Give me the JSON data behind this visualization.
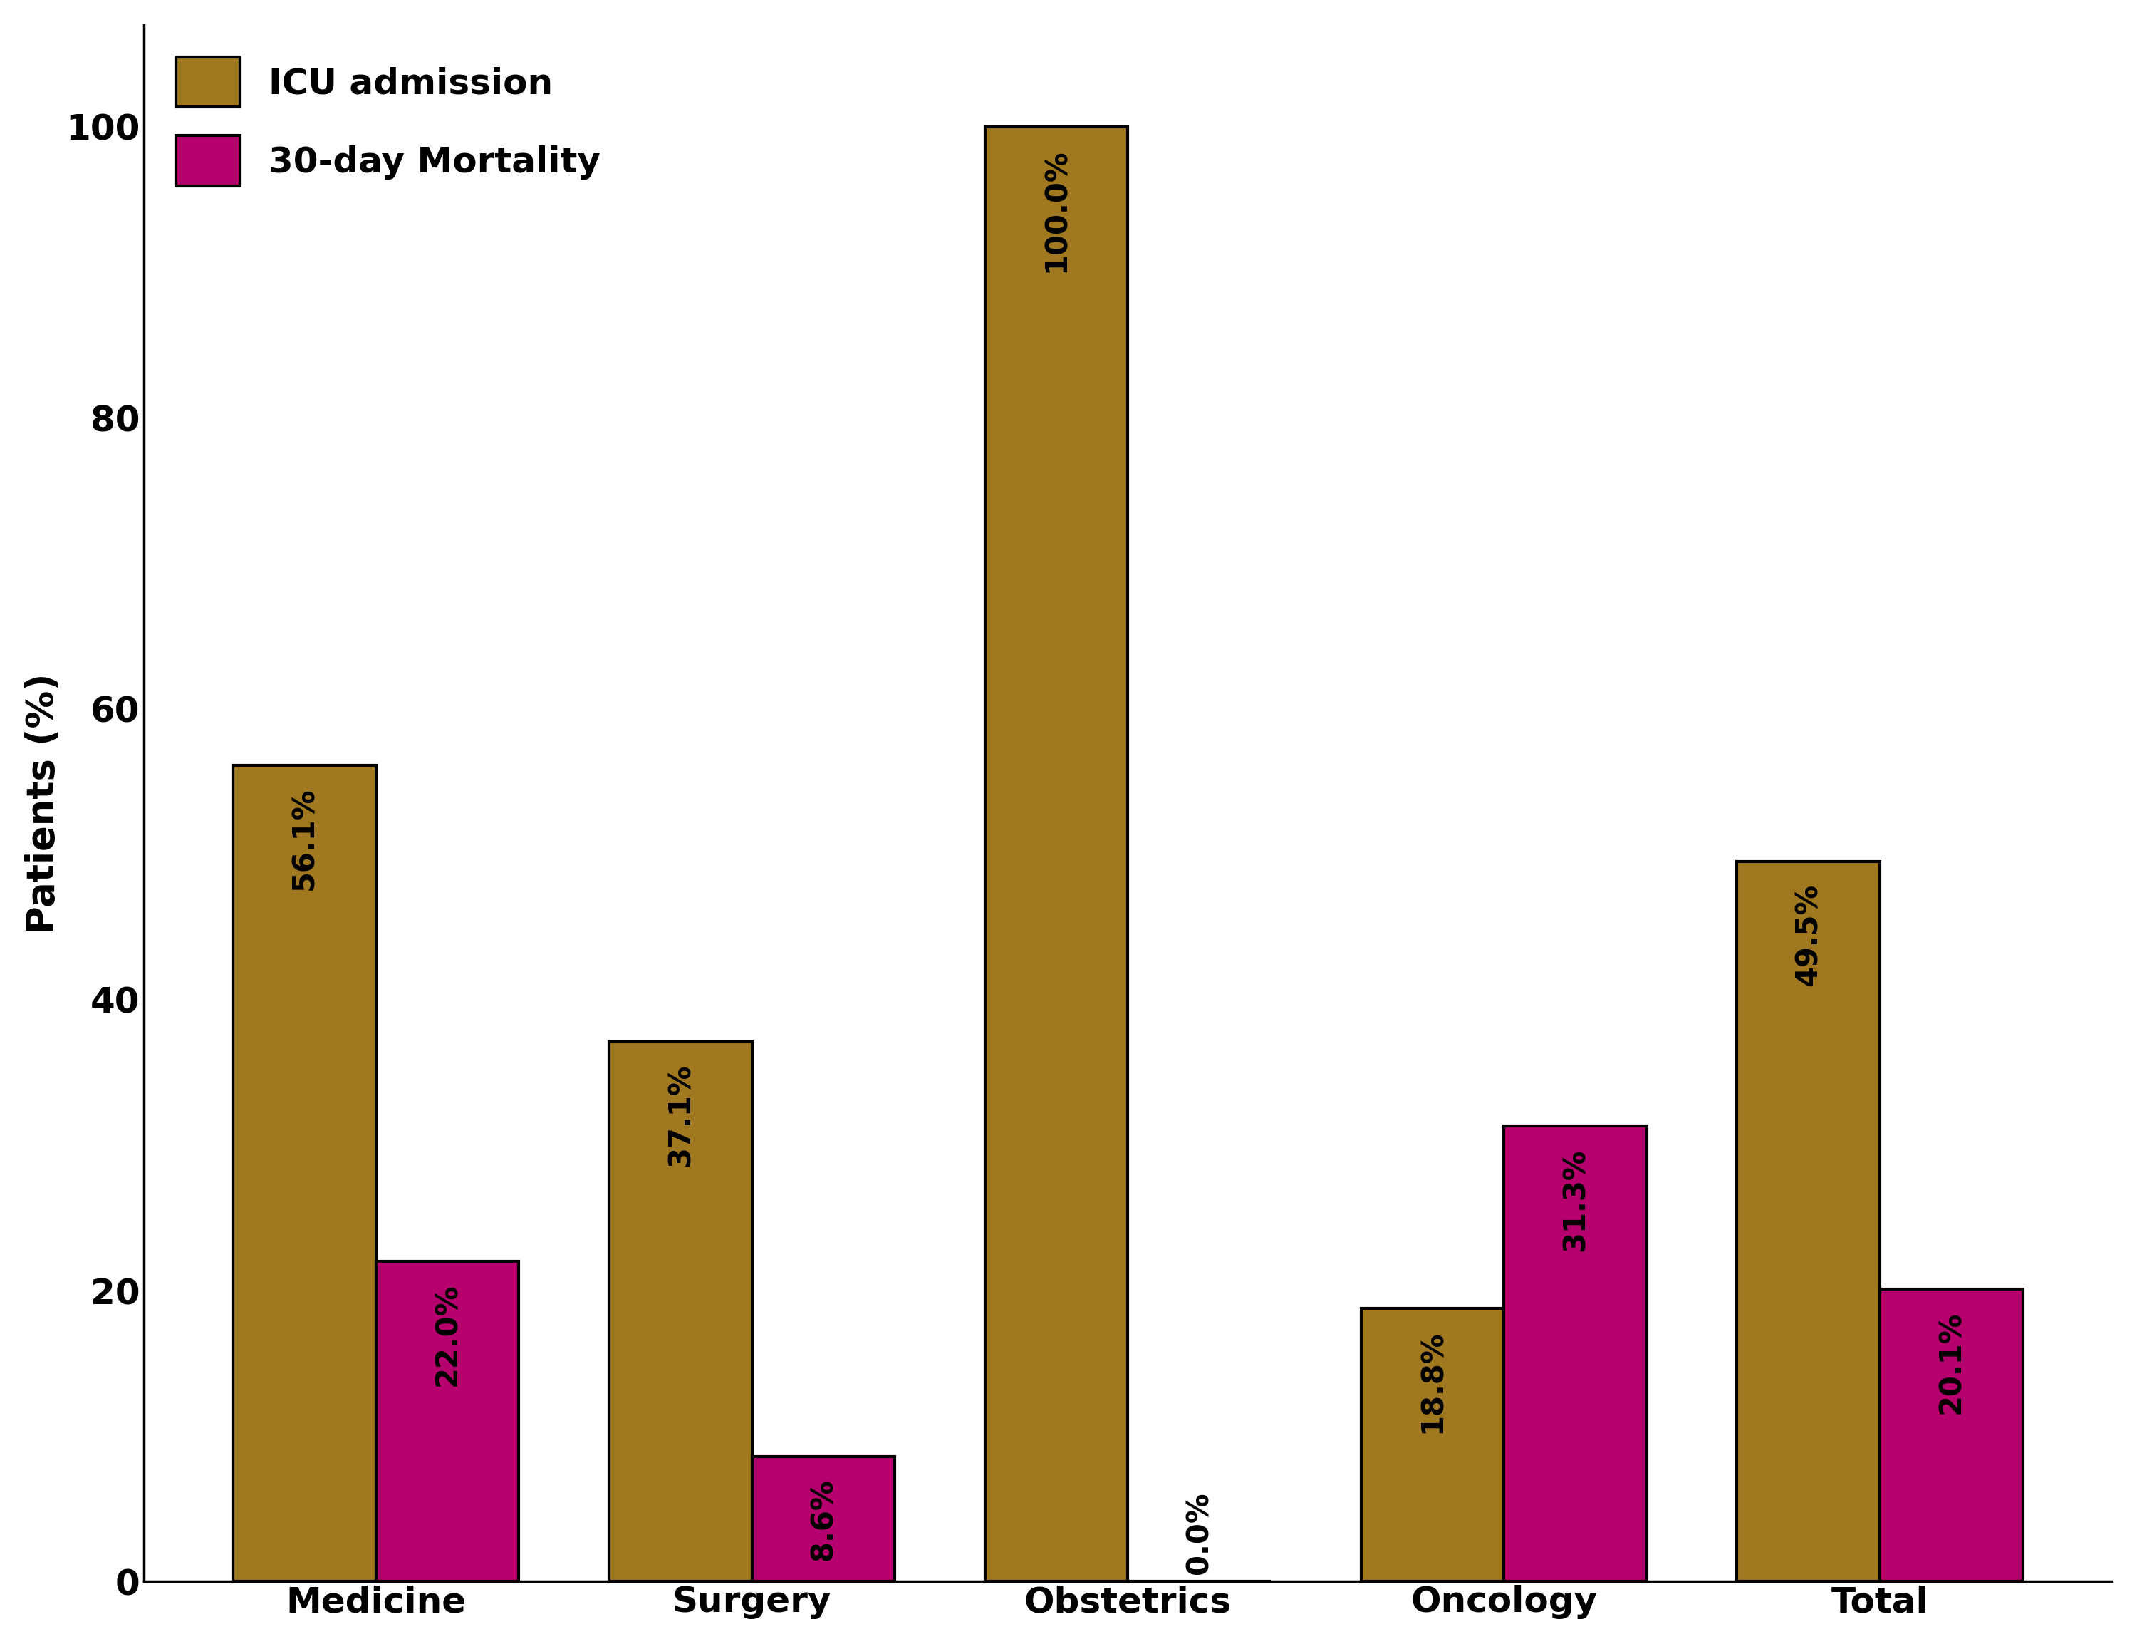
{
  "categories": [
    "Medicine",
    "Surgery",
    "Obstetrics",
    "Oncology",
    "Total"
  ],
  "icu_values": [
    56.1,
    37.1,
    100.0,
    18.8,
    49.5
  ],
  "mortality_values": [
    22.0,
    8.6,
    0.0,
    31.3,
    20.1
  ],
  "icu_color": "#A07820",
  "mortality_color": "#B5006E",
  "bar_edgecolor": "#000000",
  "bar_edge_width": 3.0,
  "ylabel": "Patients (%)",
  "ylim": [
    0,
    107
  ],
  "yticks": [
    0,
    20,
    40,
    60,
    80,
    100
  ],
  "legend_labels": [
    "ICU admission",
    "30-day Mortality"
  ],
  "bar_width": 0.38,
  "label_fontsize": 38,
  "tick_fontsize": 36,
  "legend_fontsize": 36,
  "annotation_fontsize": 30,
  "background_color": "#ffffff"
}
